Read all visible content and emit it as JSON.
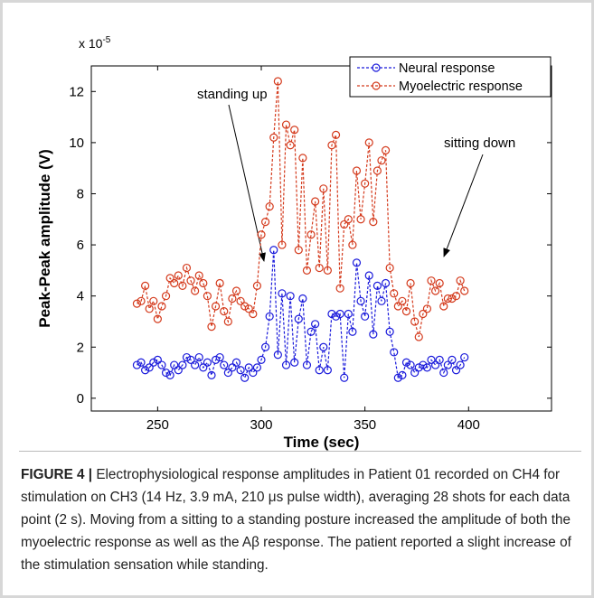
{
  "chart_data": {
    "type": "line",
    "xlabel": "Time (sec)",
    "ylabel": "Peak-Peak amplitude (V)",
    "y_multiplier": {
      "base": "x 10",
      "exponent": "-5"
    },
    "xlim": [
      218,
      440
    ],
    "ylim": [
      -0.5,
      13
    ],
    "xticks": [
      250,
      300,
      350,
      400
    ],
    "yticks": [
      0,
      2,
      4,
      6,
      8,
      10,
      12
    ],
    "grid": false,
    "legend": "upper right",
    "x": [
      240,
      242,
      244,
      246,
      248,
      250,
      252,
      254,
      256,
      258,
      260,
      262,
      264,
      266,
      268,
      270,
      272,
      274,
      276,
      278,
      280,
      282,
      284,
      286,
      288,
      290,
      292,
      294,
      296,
      298,
      300,
      302,
      304,
      306,
      308,
      310,
      312,
      314,
      316,
      318,
      320,
      322,
      324,
      326,
      328,
      330,
      332,
      334,
      336,
      338,
      340,
      342,
      344,
      346,
      348,
      350,
      352,
      354,
      356,
      358,
      360,
      362,
      364,
      366,
      368,
      370,
      372,
      374,
      376,
      378,
      380,
      382,
      384,
      386,
      388,
      390,
      392,
      394,
      396,
      398
    ],
    "series": [
      {
        "name": "Neural response",
        "color": "#1a1adb",
        "values": [
          1.3,
          1.4,
          1.1,
          1.2,
          1.4,
          1.5,
          1.3,
          1.0,
          0.9,
          1.3,
          1.1,
          1.3,
          1.6,
          1.5,
          1.3,
          1.6,
          1.2,
          1.4,
          0.9,
          1.5,
          1.6,
          1.3,
          1.0,
          1.2,
          1.4,
          1.1,
          0.8,
          1.2,
          1.0,
          1.2,
          1.5,
          2.0,
          3.2,
          5.8,
          1.7,
          4.1,
          1.3,
          4.0,
          1.4,
          3.1,
          3.9,
          1.3,
          2.6,
          2.9,
          1.1,
          2.0,
          1.1,
          3.3,
          3.2,
          3.3,
          0.8,
          3.3,
          2.6,
          5.3,
          3.8,
          3.2,
          4.8,
          2.5,
          4.4,
          3.8,
          4.5,
          2.6,
          1.8,
          0.8,
          0.9,
          1.4,
          1.3,
          1.0,
          1.2,
          1.3,
          1.2,
          1.5,
          1.3,
          1.5,
          1.0,
          1.3,
          1.5,
          1.1,
          1.3,
          1.6
        ]
      },
      {
        "name": "Myoelectric response",
        "color": "#d43a1c",
        "values": [
          3.7,
          3.8,
          4.4,
          3.5,
          3.8,
          3.1,
          3.6,
          4.0,
          4.7,
          4.5,
          4.8,
          4.4,
          5.1,
          4.6,
          4.2,
          4.8,
          4.5,
          4.0,
          2.8,
          3.6,
          4.5,
          3.4,
          3.0,
          3.9,
          4.2,
          3.8,
          3.6,
          3.5,
          3.3,
          4.4,
          6.4,
          6.9,
          7.5,
          10.2,
          12.4,
          6.0,
          10.7,
          9.9,
          10.5,
          5.8,
          9.4,
          5.0,
          6.4,
          7.7,
          5.1,
          8.2,
          5.0,
          9.9,
          10.3,
          4.3,
          6.8,
          7.0,
          6.0,
          8.9,
          7.0,
          8.4,
          10.0,
          6.9,
          8.9,
          9.3,
          9.7,
          5.1,
          4.1,
          3.6,
          3.8,
          3.4,
          4.5,
          3.0,
          2.4,
          3.3,
          3.5,
          4.6,
          4.2,
          4.5,
          3.6,
          3.9,
          3.9,
          4.0,
          4.6,
          4.2
        ]
      }
    ],
    "annotations": [
      "standing up",
      "sitting down"
    ]
  },
  "caption": {
    "label": "FIGURE 4 |",
    "text": "Electrophysiological response amplitudes in Patient 01 recorded on CH4 for stimulation on CH3 (14 Hz, 3.9 mA, 210 μs pulse width), averaging 28 shots for each data point (2 s). Moving from a sitting to a standing posture increased the amplitude of both the myoelectric response as well as the Aβ response. The patient reported a slight increase of the stimulation sensation while standing."
  }
}
